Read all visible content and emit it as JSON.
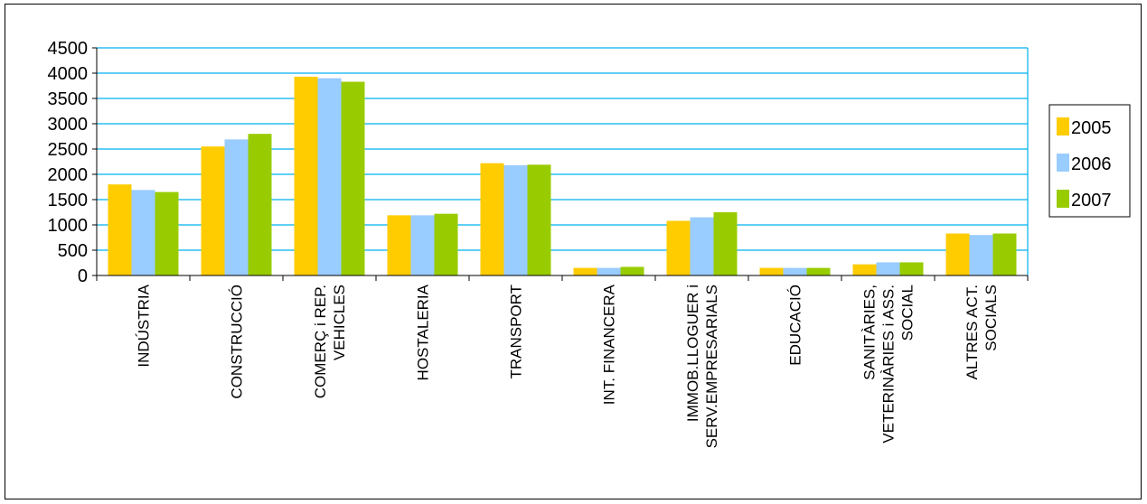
{
  "chart_data": {
    "type": "bar",
    "title": "",
    "xlabel": "",
    "ylabel": "",
    "ylim": [
      0,
      4500
    ],
    "yticks": [
      0,
      500,
      1000,
      1500,
      2000,
      2500,
      3000,
      3500,
      4000,
      4500
    ],
    "grid": true,
    "legend_position": "right",
    "categories": [
      [
        "INDÚSTRIA"
      ],
      [
        "CONSTRUCCIÓ"
      ],
      [
        "COMERÇ i REP.",
        "VEHICLES"
      ],
      [
        "HOSTALERIA"
      ],
      [
        "TRANSPORT"
      ],
      [
        "INT. FINANCERA"
      ],
      [
        "IMMOB.LLOGUER i",
        "SERV.EMPRESARIALS"
      ],
      [
        "EDUCACIÓ"
      ],
      [
        "SANITÀRIES,",
        "VETERINÀRIES i ASS.",
        "SOCIAL"
      ],
      [
        "ALTRES ACT.",
        "SOCIALS"
      ]
    ],
    "series": [
      {
        "name": "2005",
        "color": "#FFCC00",
        "values": [
          1800,
          2550,
          3930,
          1190,
          2220,
          150,
          1080,
          150,
          220,
          830
        ]
      },
      {
        "name": "2006",
        "color": "#99CCFF",
        "values": [
          1690,
          2690,
          3900,
          1190,
          2180,
          150,
          1150,
          150,
          260,
          800
        ]
      },
      {
        "name": "2007",
        "color": "#99CC00",
        "values": [
          1650,
          2800,
          3830,
          1220,
          2190,
          170,
          1250,
          150,
          260,
          830
        ]
      }
    ],
    "grid_color": "#00B0F0"
  }
}
